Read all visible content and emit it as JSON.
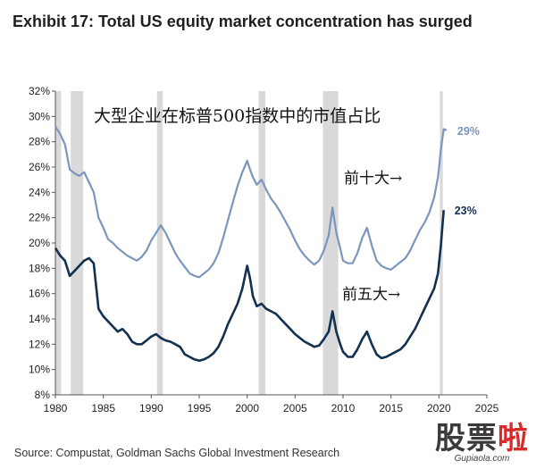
{
  "title": "Exhibit 17: Total US equity market concentration has surged",
  "source": "Source: Compustat, Goldman Sachs Global Investment Research",
  "watermark": {
    "text_a": "股票",
    "text_b": "啦",
    "url": "Gupiaola.com"
  },
  "chart_data": {
    "type": "line",
    "annotation": "大型企业在标普500指数中的市值占比",
    "xlim": [
      1980,
      2025
    ],
    "ylim": [
      8,
      32
    ],
    "x_ticks": [
      "1980",
      "1985",
      "1990",
      "1995",
      "2000",
      "2005",
      "2010",
      "2015",
      "2020",
      "2025"
    ],
    "y_ticks": [
      "8%",
      "10%",
      "12%",
      "14%",
      "16%",
      "18%",
      "20%",
      "22%",
      "24%",
      "26%",
      "28%",
      "30%",
      "32%"
    ],
    "recessions": [
      [
        1980.0,
        1980.6
      ],
      [
        1981.6,
        1982.9
      ],
      [
        1990.6,
        1991.2
      ],
      [
        2001.2,
        2001.9
      ],
      [
        2007.9,
        2009.5
      ],
      [
        2020.1,
        2020.4
      ]
    ],
    "series": [
      {
        "label": "前十大→",
        "end_label": "29%",
        "color": "#7b96bd",
        "points": [
          [
            1980.0,
            29.2
          ],
          [
            1980.5,
            28.6
          ],
          [
            1981.0,
            27.8
          ],
          [
            1981.5,
            25.8
          ],
          [
            1982.0,
            25.5
          ],
          [
            1982.5,
            25.3
          ],
          [
            1983.0,
            25.6
          ],
          [
            1983.5,
            24.8
          ],
          [
            1984.0,
            24.0
          ],
          [
            1984.5,
            22.0
          ],
          [
            1985.0,
            21.2
          ],
          [
            1985.5,
            20.3
          ],
          [
            1986.0,
            20.0
          ],
          [
            1986.5,
            19.6
          ],
          [
            1987.0,
            19.3
          ],
          [
            1987.5,
            19.0
          ],
          [
            1988.0,
            18.8
          ],
          [
            1988.5,
            18.6
          ],
          [
            1989.0,
            18.9
          ],
          [
            1989.5,
            19.4
          ],
          [
            1990.0,
            20.2
          ],
          [
            1990.5,
            20.8
          ],
          [
            1991.0,
            21.4
          ],
          [
            1991.5,
            20.8
          ],
          [
            1992.0,
            20.0
          ],
          [
            1992.5,
            19.2
          ],
          [
            1993.0,
            18.6
          ],
          [
            1993.5,
            18.1
          ],
          [
            1994.0,
            17.6
          ],
          [
            1994.5,
            17.4
          ],
          [
            1995.0,
            17.3
          ],
          [
            1995.5,
            17.6
          ],
          [
            1996.0,
            17.9
          ],
          [
            1996.5,
            18.4
          ],
          [
            1997.0,
            19.2
          ],
          [
            1997.5,
            20.4
          ],
          [
            1998.0,
            21.8
          ],
          [
            1998.5,
            23.2
          ],
          [
            1999.0,
            24.5
          ],
          [
            1999.5,
            25.6
          ],
          [
            2000.0,
            26.5
          ],
          [
            2000.3,
            25.8
          ],
          [
            2000.6,
            25.2
          ],
          [
            2001.0,
            24.6
          ],
          [
            2001.5,
            25.0
          ],
          [
            2002.0,
            24.2
          ],
          [
            2002.5,
            23.5
          ],
          [
            2003.0,
            23.0
          ],
          [
            2003.5,
            22.4
          ],
          [
            2004.0,
            21.7
          ],
          [
            2004.5,
            21.0
          ],
          [
            2005.0,
            20.2
          ],
          [
            2005.5,
            19.5
          ],
          [
            2006.0,
            19.0
          ],
          [
            2006.5,
            18.6
          ],
          [
            2007.0,
            18.3
          ],
          [
            2007.5,
            18.6
          ],
          [
            2008.0,
            19.4
          ],
          [
            2008.5,
            20.6
          ],
          [
            2008.9,
            22.8
          ],
          [
            2009.3,
            20.8
          ],
          [
            2009.7,
            19.6
          ],
          [
            2010.0,
            18.6
          ],
          [
            2010.5,
            18.4
          ],
          [
            2011.0,
            18.4
          ],
          [
            2011.5,
            19.2
          ],
          [
            2012.0,
            20.4
          ],
          [
            2012.5,
            21.2
          ],
          [
            2013.0,
            19.8
          ],
          [
            2013.5,
            18.6
          ],
          [
            2014.0,
            18.2
          ],
          [
            2014.5,
            18.0
          ],
          [
            2015.0,
            17.9
          ],
          [
            2015.5,
            18.2
          ],
          [
            2016.0,
            18.5
          ],
          [
            2016.5,
            18.8
          ],
          [
            2017.0,
            19.4
          ],
          [
            2017.5,
            20.2
          ],
          [
            2018.0,
            21.0
          ],
          [
            2018.5,
            21.6
          ],
          [
            2019.0,
            22.4
          ],
          [
            2019.5,
            23.6
          ],
          [
            2019.9,
            25.2
          ],
          [
            2020.2,
            27.4
          ],
          [
            2020.5,
            29.0
          ],
          [
            2020.8,
            28.9
          ]
        ]
      },
      {
        "label": "前五大→",
        "end_label": "23%",
        "color": "#12304f",
        "points": [
          [
            1980.0,
            19.6
          ],
          [
            1980.5,
            19.0
          ],
          [
            1981.0,
            18.6
          ],
          [
            1981.5,
            17.4
          ],
          [
            1982.0,
            17.8
          ],
          [
            1982.5,
            18.2
          ],
          [
            1983.0,
            18.6
          ],
          [
            1983.5,
            18.8
          ],
          [
            1984.0,
            18.4
          ],
          [
            1984.5,
            14.8
          ],
          [
            1985.0,
            14.2
          ],
          [
            1985.5,
            13.8
          ],
          [
            1986.0,
            13.4
          ],
          [
            1986.5,
            13.0
          ],
          [
            1987.0,
            13.2
          ],
          [
            1987.5,
            12.8
          ],
          [
            1988.0,
            12.2
          ],
          [
            1988.5,
            12.0
          ],
          [
            1989.0,
            12.0
          ],
          [
            1989.5,
            12.3
          ],
          [
            1990.0,
            12.6
          ],
          [
            1990.5,
            12.8
          ],
          [
            1991.0,
            12.5
          ],
          [
            1991.5,
            12.3
          ],
          [
            1992.0,
            12.2
          ],
          [
            1992.5,
            12.0
          ],
          [
            1993.0,
            11.8
          ],
          [
            1993.5,
            11.2
          ],
          [
            1994.0,
            11.0
          ],
          [
            1994.5,
            10.8
          ],
          [
            1995.0,
            10.7
          ],
          [
            1995.5,
            10.8
          ],
          [
            1996.0,
            11.0
          ],
          [
            1996.5,
            11.3
          ],
          [
            1997.0,
            11.8
          ],
          [
            1997.5,
            12.6
          ],
          [
            1998.0,
            13.6
          ],
          [
            1998.5,
            14.4
          ],
          [
            1999.0,
            15.2
          ],
          [
            1999.5,
            16.4
          ],
          [
            2000.0,
            18.2
          ],
          [
            2000.3,
            17.2
          ],
          [
            2000.6,
            15.8
          ],
          [
            2001.0,
            15.0
          ],
          [
            2001.5,
            15.2
          ],
          [
            2002.0,
            14.8
          ],
          [
            2002.5,
            14.6
          ],
          [
            2003.0,
            14.4
          ],
          [
            2003.5,
            14.0
          ],
          [
            2004.0,
            13.6
          ],
          [
            2004.5,
            13.2
          ],
          [
            2005.0,
            12.8
          ],
          [
            2005.5,
            12.5
          ],
          [
            2006.0,
            12.2
          ],
          [
            2006.5,
            12.0
          ],
          [
            2007.0,
            11.8
          ],
          [
            2007.5,
            11.9
          ],
          [
            2008.0,
            12.4
          ],
          [
            2008.5,
            13.0
          ],
          [
            2008.9,
            14.6
          ],
          [
            2009.3,
            13.0
          ],
          [
            2009.7,
            12.0
          ],
          [
            2010.0,
            11.4
          ],
          [
            2010.5,
            11.0
          ],
          [
            2011.0,
            11.0
          ],
          [
            2011.5,
            11.6
          ],
          [
            2012.0,
            12.4
          ],
          [
            2012.5,
            13.0
          ],
          [
            2013.0,
            12.0
          ],
          [
            2013.5,
            11.2
          ],
          [
            2014.0,
            10.9
          ],
          [
            2014.5,
            11.0
          ],
          [
            2015.0,
            11.2
          ],
          [
            2015.5,
            11.4
          ],
          [
            2016.0,
            11.6
          ],
          [
            2016.5,
            12.0
          ],
          [
            2017.0,
            12.6
          ],
          [
            2017.5,
            13.2
          ],
          [
            2018.0,
            14.0
          ],
          [
            2018.5,
            14.8
          ],
          [
            2019.0,
            15.6
          ],
          [
            2019.5,
            16.4
          ],
          [
            2019.9,
            17.6
          ],
          [
            2020.2,
            19.8
          ],
          [
            2020.5,
            22.6
          ]
        ]
      }
    ]
  }
}
